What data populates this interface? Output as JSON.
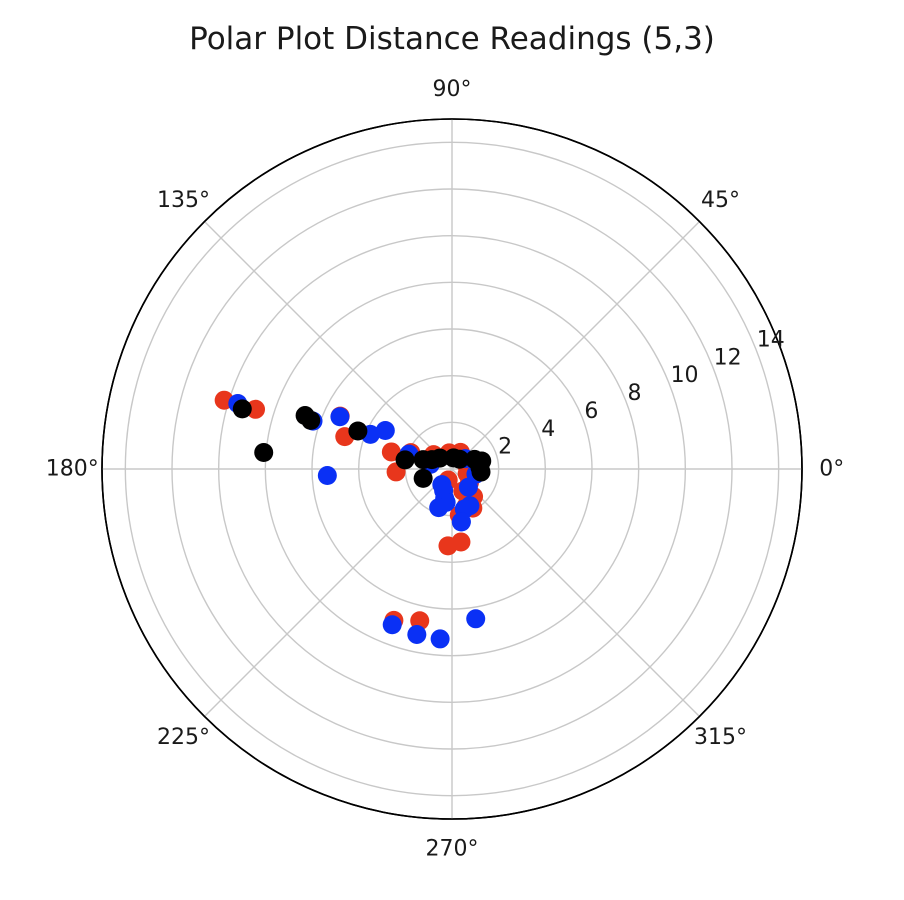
{
  "chart_data": {
    "type": "scatter",
    "title": "Polar Plot Distance Readings (5,3)",
    "projection": "polar",
    "rlim": [
      0,
      15
    ],
    "r_ticks": [
      2,
      4,
      6,
      8,
      10,
      12,
      14
    ],
    "r_tick_labels": [
      "2",
      "4",
      "6",
      "8",
      "10",
      "12",
      "14"
    ],
    "theta_ticks_deg": [
      0,
      45,
      90,
      135,
      180,
      225,
      270,
      315
    ],
    "theta_tick_labels": [
      "0°",
      "45°",
      "90°",
      "135°",
      "180°",
      "225°",
      "270°",
      "315°"
    ],
    "grid": true,
    "legend": "none",
    "series": [
      {
        "color": "#e8361c",
        "points": [
          {
            "theta": 163.2,
            "r": 4.8
          },
          {
            "theta": 164.3,
            "r": 2.7
          },
          {
            "theta": 158.3,
            "r": 1.9
          },
          {
            "theta": 154.7,
            "r": 5.3
          },
          {
            "theta": 163.1,
            "r": 8.8
          },
          {
            "theta": 163.2,
            "r": 10.2
          },
          {
            "theta": 183.0,
            "r": 2.4
          },
          {
            "theta": 142.0,
            "r": 1.0
          },
          {
            "theta": 100.0,
            "r": 0.7
          },
          {
            "theta": 63.0,
            "r": 0.8
          },
          {
            "theta": 14.0,
            "r": 0.65
          },
          {
            "theta": -17.0,
            "r": 0.68
          },
          {
            "theta": -38.0,
            "r": 0.95
          },
          {
            "theta": -52.0,
            "r": 1.5
          },
          {
            "theta": -62.0,
            "r": 1.9
          },
          {
            "theta": -69.0,
            "r": 1.7
          },
          {
            "theta": -64.0,
            "r": 1.05
          },
          {
            "theta": -122.0,
            "r": 0.8
          },
          {
            "theta": -109.0,
            "r": 0.5
          },
          {
            "theta": -81.0,
            "r": 2.0
          },
          {
            "theta": -83.0,
            "r": 3.15
          },
          {
            "theta": -93.0,
            "r": 3.3
          },
          {
            "theta": -102.0,
            "r": 6.65
          },
          {
            "theta": -111.0,
            "r": 6.95
          }
        ]
      },
      {
        "color": "#0a30f5",
        "points": [
          {
            "theta": 150.0,
            "r": 3.3
          },
          {
            "theta": 157.0,
            "r": 3.8
          },
          {
            "theta": 155.0,
            "r": 5.3
          },
          {
            "theta": 161.0,
            "r": 6.3
          },
          {
            "theta": 163.0,
            "r": 9.6
          },
          {
            "theta": 161.0,
            "r": 1.95
          },
          {
            "theta": 183.0,
            "r": 5.35
          },
          {
            "theta": 168.0,
            "r": 0.95
          },
          {
            "theta": 38.0,
            "r": 0.72
          },
          {
            "theta": 10.0,
            "r": 1.1
          },
          {
            "theta": -12.0,
            "r": 1.05
          },
          {
            "theta": -48.0,
            "r": 1.05
          },
          {
            "theta": -64.0,
            "r": 1.75
          },
          {
            "theta": -73.0,
            "r": 1.8
          },
          {
            "theta": -80.0,
            "r": 2.3
          },
          {
            "theta": -80.0,
            "r": 2.3
          },
          {
            "theta": -123.0,
            "r": 0.8
          },
          {
            "theta": -111.0,
            "r": 1.0
          },
          {
            "theta": -104.0,
            "r": 1.3
          },
          {
            "theta": -100.0,
            "r": 1.45
          },
          {
            "theta": -109.0,
            "r": 1.75
          },
          {
            "theta": -81.0,
            "r": 6.5
          },
          {
            "theta": -94.0,
            "r": 7.3
          },
          {
            "theta": -102.0,
            "r": 7.25
          },
          {
            "theta": -111.0,
            "r": 7.15
          }
        ]
      },
      {
        "color": "#000000",
        "points": [
          {
            "theta": 160.0,
            "r": 6.7
          },
          {
            "theta": 161.0,
            "r": 6.4
          },
          {
            "theta": 158.0,
            "r": 4.35
          },
          {
            "theta": 164.0,
            "r": 9.35
          },
          {
            "theta": 175.0,
            "r": 8.1
          },
          {
            "theta": 169.0,
            "r": 2.05
          },
          {
            "theta": 162.0,
            "r": 1.3
          },
          {
            "theta": 155.0,
            "r": 0.95
          },
          {
            "theta": 138.0,
            "r": 0.7
          },
          {
            "theta": 82.0,
            "r": 0.48
          },
          {
            "theta": 52.0,
            "r": 0.53
          },
          {
            "theta": 23.0,
            "r": 1.05
          },
          {
            "theta": 15.0,
            "r": 1.32
          },
          {
            "theta": 7.0,
            "r": 1.2
          },
          {
            "theta": 3.0,
            "r": 1.2
          },
          {
            "theta": -6.0,
            "r": 1.25
          },
          {
            "theta": 198.0,
            "r": 1.3
          }
        ]
      }
    ]
  }
}
